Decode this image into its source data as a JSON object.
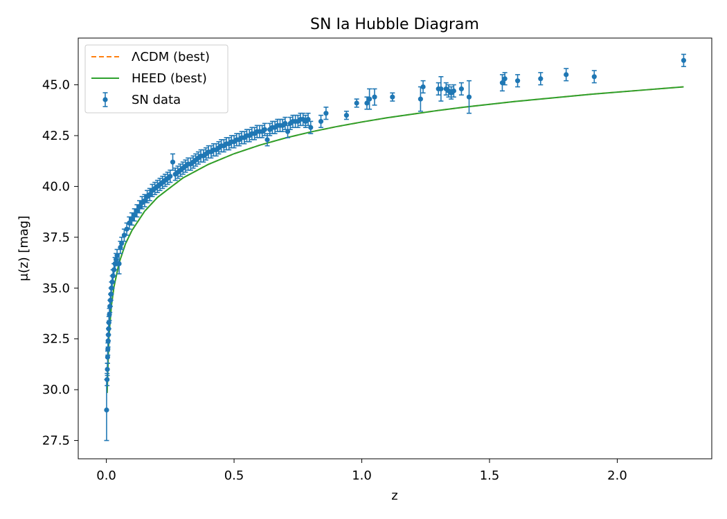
{
  "chart_data": {
    "type": "scatter",
    "title": "SN Ia Hubble Diagram",
    "xlabel": "z",
    "ylabel": "μ(z) [mag]",
    "xlim": [
      -0.11,
      2.37
    ],
    "ylim": [
      26.6,
      47.3
    ],
    "xticks": [
      0.0,
      0.5,
      1.0,
      1.5,
      2.0
    ],
    "xtick_labels": [
      "0.0",
      "0.5",
      "1.0",
      "1.5",
      "2.0"
    ],
    "yticks": [
      27.5,
      30.0,
      32.5,
      35.0,
      37.5,
      40.0,
      42.5,
      45.0
    ],
    "ytick_labels": [
      "27.5",
      "30.0",
      "32.5",
      "35.0",
      "37.5",
      "40.0",
      "42.5",
      "45.0"
    ],
    "grid": false,
    "legend_position": "top-left",
    "legend": [
      {
        "label": "ΛCDM (best)",
        "style": "dashed",
        "color": "#ff7f0e"
      },
      {
        "label": "HEED (best)",
        "style": "solid",
        "color": "#2ca02c"
      },
      {
        "label": "SN data",
        "style": "errorbar-marker",
        "color": "#1f77b4"
      }
    ],
    "model_curves": [
      {
        "name": "ΛCDM (best)",
        "color": "#ff7f0e",
        "dash": true,
        "x": [
          0.003,
          0.01,
          0.02,
          0.03,
          0.05,
          0.075,
          0.1,
          0.15,
          0.2,
          0.3,
          0.4,
          0.5,
          0.6,
          0.7,
          0.8,
          0.9,
          1.0,
          1.1,
          1.2,
          1.3,
          1.4,
          1.5,
          1.6,
          1.7,
          1.8,
          1.9,
          2.0,
          2.1,
          2.26
        ],
        "y": [
          29.84,
          32.59,
          34.15,
          35.07,
          36.24,
          37.18,
          37.83,
          38.78,
          39.46,
          40.42,
          41.09,
          41.61,
          42.03,
          42.38,
          42.68,
          42.94,
          43.17,
          43.38,
          43.56,
          43.74,
          43.9,
          44.04,
          44.18,
          44.3,
          44.42,
          44.54,
          44.64,
          44.74,
          44.9
        ]
      },
      {
        "name": "HEED (best)",
        "color": "#2ca02c",
        "dash": false,
        "x": [
          0.003,
          0.01,
          0.02,
          0.03,
          0.05,
          0.075,
          0.1,
          0.15,
          0.2,
          0.3,
          0.4,
          0.5,
          0.6,
          0.7,
          0.8,
          0.9,
          1.0,
          1.1,
          1.2,
          1.3,
          1.4,
          1.5,
          1.6,
          1.7,
          1.8,
          1.9,
          2.0,
          2.1,
          2.26
        ],
        "y": [
          29.84,
          32.59,
          34.15,
          35.07,
          36.24,
          37.18,
          37.83,
          38.78,
          39.46,
          40.42,
          41.09,
          41.61,
          42.03,
          42.38,
          42.68,
          42.94,
          43.17,
          43.38,
          43.56,
          43.74,
          43.9,
          44.04,
          44.18,
          44.3,
          44.42,
          44.54,
          44.64,
          44.74,
          44.9
        ]
      }
    ],
    "series": [
      {
        "name": "SN data",
        "color": "#1f77b4",
        "points": [
          [
            0.001,
            29.0,
            1.5
          ],
          [
            0.003,
            30.5,
            0.3
          ],
          [
            0.004,
            31.0,
            0.3
          ],
          [
            0.005,
            31.6,
            0.3
          ],
          [
            0.006,
            32.0,
            0.3
          ],
          [
            0.007,
            32.4,
            0.3
          ],
          [
            0.008,
            32.7,
            0.3
          ],
          [
            0.009,
            33.0,
            0.3
          ],
          [
            0.01,
            33.3,
            0.3
          ],
          [
            0.012,
            33.7,
            0.3
          ],
          [
            0.014,
            34.1,
            0.3
          ],
          [
            0.016,
            34.4,
            0.3
          ],
          [
            0.018,
            34.7,
            0.3
          ],
          [
            0.02,
            35.0,
            0.3
          ],
          [
            0.023,
            35.3,
            0.3
          ],
          [
            0.026,
            35.6,
            0.3
          ],
          [
            0.03,
            35.9,
            0.3
          ],
          [
            0.034,
            36.2,
            0.3
          ],
          [
            0.038,
            36.4,
            0.3
          ],
          [
            0.042,
            36.6,
            0.3
          ],
          [
            0.05,
            36.2,
            0.5
          ],
          [
            0.055,
            37.0,
            0.3
          ],
          [
            0.06,
            37.2,
            0.3
          ],
          [
            0.07,
            37.6,
            0.3
          ],
          [
            0.08,
            37.9,
            0.3
          ],
          [
            0.09,
            38.2,
            0.3
          ],
          [
            0.1,
            38.4,
            0.3
          ],
          [
            0.11,
            38.6,
            0.3
          ],
          [
            0.12,
            38.8,
            0.3
          ],
          [
            0.13,
            39.0,
            0.3
          ],
          [
            0.14,
            39.2,
            0.3
          ],
          [
            0.15,
            39.3,
            0.3
          ],
          [
            0.16,
            39.5,
            0.3
          ],
          [
            0.17,
            39.6,
            0.3
          ],
          [
            0.18,
            39.8,
            0.3
          ],
          [
            0.19,
            39.9,
            0.3
          ],
          [
            0.2,
            40.0,
            0.3
          ],
          [
            0.21,
            40.1,
            0.3
          ],
          [
            0.22,
            40.2,
            0.3
          ],
          [
            0.23,
            40.3,
            0.3
          ],
          [
            0.24,
            40.4,
            0.3
          ],
          [
            0.25,
            40.5,
            0.3
          ],
          [
            0.26,
            41.2,
            0.4
          ],
          [
            0.27,
            40.6,
            0.3
          ],
          [
            0.28,
            40.7,
            0.3
          ],
          [
            0.29,
            40.8,
            0.3
          ],
          [
            0.3,
            40.9,
            0.3
          ],
          [
            0.31,
            41.0,
            0.3
          ],
          [
            0.32,
            41.1,
            0.3
          ],
          [
            0.33,
            41.1,
            0.3
          ],
          [
            0.34,
            41.2,
            0.3
          ],
          [
            0.35,
            41.3,
            0.3
          ],
          [
            0.36,
            41.4,
            0.3
          ],
          [
            0.37,
            41.5,
            0.3
          ],
          [
            0.38,
            41.5,
            0.3
          ],
          [
            0.39,
            41.6,
            0.3
          ],
          [
            0.4,
            41.7,
            0.3
          ],
          [
            0.41,
            41.7,
            0.3
          ],
          [
            0.42,
            41.8,
            0.3
          ],
          [
            0.43,
            41.8,
            0.3
          ],
          [
            0.44,
            41.9,
            0.3
          ],
          [
            0.45,
            42.0,
            0.3
          ],
          [
            0.46,
            42.0,
            0.3
          ],
          [
            0.47,
            42.1,
            0.3
          ],
          [
            0.48,
            42.1,
            0.3
          ],
          [
            0.49,
            42.2,
            0.3
          ],
          [
            0.5,
            42.2,
            0.3
          ],
          [
            0.51,
            42.3,
            0.3
          ],
          [
            0.52,
            42.3,
            0.3
          ],
          [
            0.53,
            42.4,
            0.3
          ],
          [
            0.54,
            42.4,
            0.3
          ],
          [
            0.55,
            42.5,
            0.3
          ],
          [
            0.56,
            42.5,
            0.3
          ],
          [
            0.57,
            42.6,
            0.3
          ],
          [
            0.58,
            42.6,
            0.3
          ],
          [
            0.59,
            42.7,
            0.3
          ],
          [
            0.6,
            42.7,
            0.3
          ],
          [
            0.61,
            42.7,
            0.3
          ],
          [
            0.62,
            42.8,
            0.3
          ],
          [
            0.63,
            42.3,
            0.3
          ],
          [
            0.64,
            42.8,
            0.3
          ],
          [
            0.65,
            42.9,
            0.3
          ],
          [
            0.66,
            42.9,
            0.3
          ],
          [
            0.67,
            43.0,
            0.3
          ],
          [
            0.68,
            43.0,
            0.3
          ],
          [
            0.69,
            43.0,
            0.3
          ],
          [
            0.7,
            43.1,
            0.3
          ],
          [
            0.71,
            42.7,
            0.3
          ],
          [
            0.72,
            43.1,
            0.3
          ],
          [
            0.73,
            43.2,
            0.3
          ],
          [
            0.74,
            43.2,
            0.3
          ],
          [
            0.75,
            43.2,
            0.3
          ],
          [
            0.76,
            43.3,
            0.3
          ],
          [
            0.77,
            43.3,
            0.3
          ],
          [
            0.78,
            43.2,
            0.3
          ],
          [
            0.79,
            43.3,
            0.3
          ],
          [
            0.8,
            42.9,
            0.3
          ],
          [
            0.84,
            43.2,
            0.3
          ],
          [
            0.86,
            43.6,
            0.3
          ],
          [
            0.94,
            43.5,
            0.2
          ],
          [
            0.98,
            44.1,
            0.2
          ],
          [
            1.02,
            44.1,
            0.3
          ],
          [
            1.03,
            44.3,
            0.5
          ],
          [
            1.05,
            44.4,
            0.4
          ],
          [
            1.12,
            44.4,
            0.2
          ],
          [
            1.23,
            44.3,
            0.6
          ],
          [
            1.24,
            44.9,
            0.3
          ],
          [
            1.3,
            44.8,
            0.3
          ],
          [
            1.31,
            44.8,
            0.6
          ],
          [
            1.33,
            44.8,
            0.3
          ],
          [
            1.34,
            44.7,
            0.3
          ],
          [
            1.35,
            44.6,
            0.3
          ],
          [
            1.36,
            44.7,
            0.3
          ],
          [
            1.39,
            44.8,
            0.3
          ],
          [
            1.42,
            44.4,
            0.8
          ],
          [
            1.55,
            45.1,
            0.4
          ],
          [
            1.56,
            45.3,
            0.3
          ],
          [
            1.61,
            45.2,
            0.3
          ],
          [
            1.7,
            45.3,
            0.3
          ],
          [
            1.8,
            45.5,
            0.3
          ],
          [
            1.91,
            45.4,
            0.3
          ],
          [
            2.26,
            46.2,
            0.3
          ]
        ]
      }
    ]
  }
}
